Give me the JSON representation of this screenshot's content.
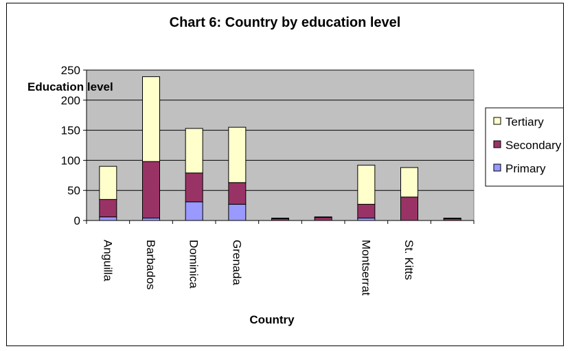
{
  "chart_data": {
    "type": "bar",
    "stacked": true,
    "title": "Chart 6: Country by education level",
    "xlabel": "Country",
    "ylabel": "Education level",
    "ylim": [
      0,
      250
    ],
    "yticks": [
      0,
      50,
      100,
      150,
      200,
      250
    ],
    "grid": true,
    "legend_position": "right",
    "categories": [
      "Anguilla",
      "Barbados",
      "Dominica",
      "Grenada",
      "",
      "",
      "Montserrat",
      "St. Kitts",
      ""
    ],
    "series": [
      {
        "name": "Primary",
        "color": "#9999FF",
        "values": [
          6,
          4,
          31,
          27,
          0,
          0,
          4,
          0,
          0
        ]
      },
      {
        "name": "Secondary",
        "color": "#993366",
        "values": [
          29,
          94,
          48,
          36,
          3,
          5,
          23,
          39,
          3
        ]
      },
      {
        "name": "Tertiary",
        "color": "#FFFFCC",
        "values": [
          55,
          141,
          74,
          92,
          1,
          1,
          65,
          49,
          1
        ]
      }
    ],
    "legend_order": [
      "Tertiary",
      "Secondary",
      "Primary"
    ],
    "plot_background": "#C0C0C0"
  }
}
